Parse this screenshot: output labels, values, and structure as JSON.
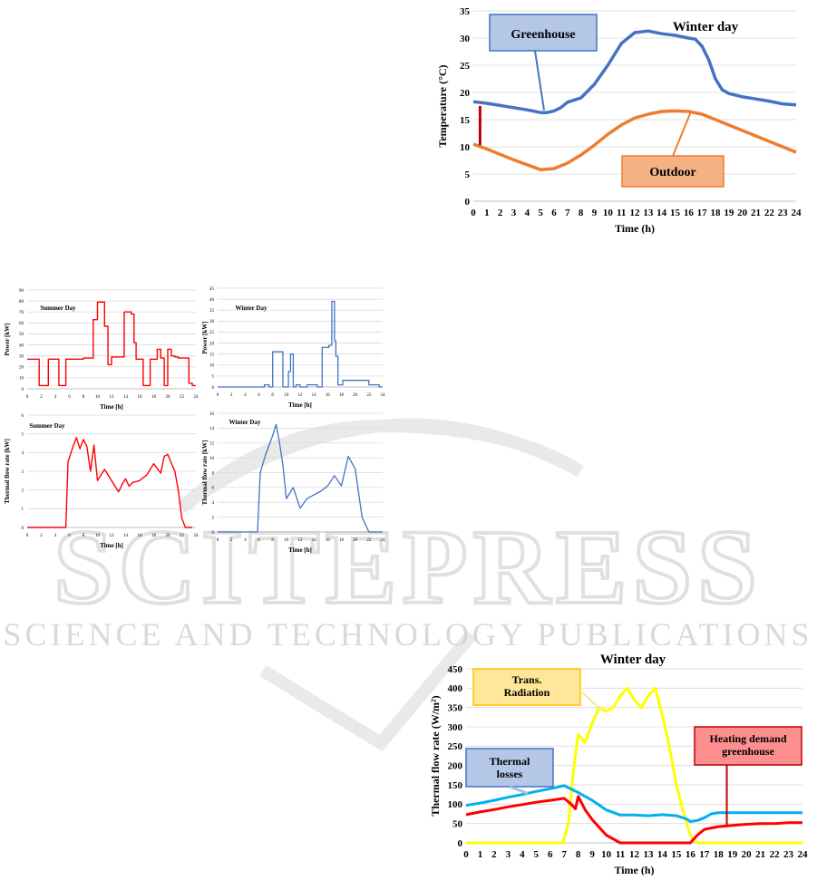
{
  "watermark": {
    "main": "SCITEPRESS",
    "sub": "SCIENCE AND TECHNOLOGY PUBLICATIONS"
  },
  "colors": {
    "red": "#ff0000",
    "blue": "#2f5fb3",
    "green_blue": "#4472c4",
    "orange": "#ed7d31",
    "yellow": "#ffff00",
    "cyan": "#00b0f0",
    "grid": "#d9d9d9"
  },
  "chart_data": [
    {
      "id": "greenhouse-winter",
      "type": "line",
      "title": "Winter day",
      "xlabel": "Time (h)",
      "ylabel": "Temperature (°C)",
      "xlim": [
        0,
        24
      ],
      "ylim": [
        0,
        35
      ],
      "xticks": [
        "0",
        "1",
        "2",
        "3",
        "4",
        "5",
        "6",
        "7",
        "8",
        "9",
        "10",
        "11",
        "12",
        "13",
        "14",
        "15",
        "16",
        "17",
        "18",
        "19",
        "20",
        "21",
        "22",
        "23",
        "24"
      ],
      "yticks": [
        "0",
        "5",
        "10",
        "15",
        "20",
        "25",
        "30",
        "35"
      ],
      "grid": true,
      "annotations": [
        "Greenhouse",
        "Outdoor"
      ],
      "series": [
        {
          "name": "Greenhouse",
          "color": "#4472c4",
          "x": [
            0,
            1,
            2,
            3,
            4,
            5,
            5.5,
            6,
            6.5,
            7,
            8,
            9,
            10,
            11,
            12,
            13,
            14,
            15,
            16,
            16.5,
            17,
            17.5,
            18,
            18.5,
            19,
            20,
            21,
            22,
            23,
            24
          ],
          "y": [
            18.3,
            18,
            17.6,
            17.2,
            16.8,
            16.3,
            16.3,
            16.6,
            17.2,
            18.2,
            19,
            21.5,
            25,
            29,
            31,
            31.3,
            30.8,
            30.5,
            30,
            29.8,
            28.5,
            26,
            22.5,
            20.5,
            19.8,
            19.2,
            18.8,
            18.4,
            17.9,
            17.7
          ]
        },
        {
          "name": "Outdoor",
          "color": "#ed7d31",
          "x": [
            0,
            1,
            2,
            3,
            4,
            5,
            6,
            7,
            8,
            9,
            10,
            11,
            12,
            13,
            14,
            15,
            16,
            17,
            18,
            19,
            20,
            21,
            22,
            23,
            24
          ],
          "y": [
            10.5,
            9.6,
            8.6,
            7.6,
            6.7,
            5.8,
            6,
            7,
            8.5,
            10.3,
            12.3,
            14,
            15.3,
            16,
            16.5,
            16.6,
            16.5,
            16,
            15,
            14,
            13,
            12,
            11,
            10,
            9
          ]
        }
      ]
    },
    {
      "id": "power-summer",
      "type": "line",
      "title": "Summer Day",
      "xlabel": "Time [h]",
      "ylabel": "Power [kW]",
      "xlim": [
        0,
        24
      ],
      "ylim": [
        0,
        90
      ],
      "xticks": [
        "0",
        "2",
        "4",
        "6",
        "8",
        "10",
        "12",
        "14",
        "16",
        "18",
        "20",
        "22",
        "24"
      ],
      "yticks": [
        "0",
        "10",
        "20",
        "30",
        "40",
        "50",
        "60",
        "70",
        "80",
        "90"
      ],
      "grid": true,
      "series": [
        {
          "name": "",
          "color": "#ff0000",
          "x": [
            0,
            1.7,
            1.7,
            3,
            3,
            4.5,
            4.5,
            5.5,
            5.5,
            8,
            8,
            9.4,
            9.4,
            10,
            10,
            11,
            11,
            11.5,
            11.5,
            12,
            12,
            13.8,
            13.8,
            14.8,
            14.8,
            15.2,
            15.2,
            15.5,
            15.5,
            16.5,
            16.5,
            17.5,
            17.5,
            18.5,
            18.5,
            19,
            19,
            19.5,
            19.5,
            20,
            20,
            20.5,
            20.5,
            21,
            21,
            21.5,
            21.5,
            23,
            23,
            23.5,
            23.5,
            24
          ],
          "y": [
            27,
            27,
            3,
            3,
            27,
            27,
            3,
            3,
            27,
            27,
            28,
            28,
            63,
            63,
            79,
            79,
            57,
            57,
            22,
            22,
            29,
            29,
            70,
            70,
            68,
            68,
            42,
            42,
            27,
            27,
            3,
            3,
            27,
            27,
            36,
            36,
            28,
            28,
            3,
            3,
            36,
            36,
            30,
            30,
            29,
            29,
            28,
            28,
            5,
            5,
            3,
            3
          ]
        }
      ]
    },
    {
      "id": "power-winter",
      "type": "line",
      "title": "Winter Day",
      "xlabel": "Time [h]",
      "ylabel": "Power [kW]",
      "xlim": [
        0,
        24
      ],
      "ylim": [
        0,
        45
      ],
      "xticks": [
        "0",
        "2",
        "4",
        "6",
        "8",
        "10",
        "12",
        "14",
        "16",
        "18",
        "20",
        "22",
        "24"
      ],
      "yticks": [
        "0",
        "5",
        "10",
        "15",
        "20",
        "25",
        "30",
        "35",
        "40",
        "45"
      ],
      "grid": true,
      "series": [
        {
          "name": "",
          "color": "#4472c4",
          "x": [
            0,
            6.8,
            6.8,
            7.5,
            7.5,
            8,
            8,
            9.5,
            9.5,
            10.3,
            10.3,
            10.6,
            10.6,
            11,
            11,
            11.4,
            11.4,
            12,
            12,
            13,
            13,
            14.5,
            14.5,
            15.2,
            15.2,
            16.2,
            16.2,
            16.6,
            16.6,
            17,
            17,
            17.2,
            17.2,
            17.5,
            17.5,
            18.2,
            18.2,
            19,
            19,
            20,
            20,
            22,
            22,
            23.5,
            23.5,
            24
          ],
          "y": [
            0,
            0,
            1,
            1,
            0,
            0,
            16,
            16,
            0,
            0,
            7,
            7,
            15,
            15,
            0,
            0,
            1,
            1,
            0,
            0,
            1,
            1,
            0,
            0,
            18,
            18,
            19,
            19,
            39,
            39,
            21,
            21,
            14,
            14,
            1,
            1,
            3,
            3,
            3,
            3,
            3,
            3,
            1,
            1,
            0,
            0
          ]
        }
      ]
    },
    {
      "id": "thermal-summer",
      "type": "line",
      "title": "Summer Day",
      "xlabel": "Time [h]",
      "ylabel": "Thermal flow rate [kW]",
      "xlim": [
        0,
        24
      ],
      "ylim": [
        0,
        6
      ],
      "xticks": [
        "0",
        "2",
        "4",
        "6",
        "8",
        "10",
        "12",
        "14",
        "16",
        "18",
        "20",
        "22",
        "24"
      ],
      "yticks": [
        "0",
        "1",
        "2",
        "3",
        "4",
        "5",
        "6"
      ],
      "grid": true,
      "series": [
        {
          "name": "",
          "color": "#ff0000",
          "x": [
            0,
            5.5,
            5.8,
            6.5,
            7,
            7.5,
            8,
            8.5,
            9,
            9.5,
            10,
            10.5,
            11,
            12,
            13,
            13.5,
            14,
            14.5,
            15,
            16,
            17,
            18,
            19,
            19.5,
            20,
            21,
            21.5,
            22,
            22.5,
            23.5
          ],
          "y": [
            0,
            0,
            3.5,
            4.3,
            4.8,
            4.2,
            4.7,
            4.3,
            3.0,
            4.4,
            2.5,
            2.8,
            3.1,
            2.5,
            1.9,
            2.3,
            2.6,
            2.2,
            2.4,
            2.5,
            2.8,
            3.4,
            2.9,
            3.8,
            3.9,
            3.0,
            2.0,
            0.5,
            0,
            0
          ]
        }
      ]
    },
    {
      "id": "thermal-winter",
      "type": "line",
      "title": "Winter Day",
      "xlabel": "Time [h]",
      "ylabel": "Thermal flow rate [kW]",
      "xlim": [
        0,
        24
      ],
      "ylim": [
        0,
        16
      ],
      "xticks": [
        "0",
        "2",
        "4",
        "6",
        "8",
        "10",
        "12",
        "14",
        "16",
        "18",
        "20",
        "22",
        "24"
      ],
      "yticks": [
        "0",
        "2",
        "4",
        "6",
        "8",
        "10",
        "12",
        "14",
        "16"
      ],
      "grid": true,
      "series": [
        {
          "name": "",
          "color": "#4472c4",
          "x": [
            0,
            5.8,
            6.2,
            7,
            8,
            8.5,
            9,
            9.5,
            10,
            11,
            12,
            13,
            14,
            15,
            16,
            17,
            18,
            19,
            20,
            21,
            22,
            23,
            24
          ],
          "y": [
            0,
            0,
            8,
            10.5,
            13,
            14.5,
            12,
            9,
            4.5,
            6,
            3.2,
            4.5,
            5,
            5.5,
            6.2,
            7.6,
            6.2,
            10.2,
            8.5,
            2,
            0,
            0,
            0
          ]
        }
      ]
    },
    {
      "id": "heating-winter",
      "type": "line",
      "title": "Winter day",
      "xlabel": "Time (h)",
      "ylabel": "Thermal flow rate (W/m²)",
      "xlim": [
        0,
        24
      ],
      "ylim": [
        0,
        450
      ],
      "xticks": [
        "0",
        "1",
        "2",
        "3",
        "4",
        "5",
        "6",
        "7",
        "8",
        "9",
        "10",
        "11",
        "12",
        "13",
        "14",
        "15",
        "16",
        "17",
        "18",
        "19",
        "20",
        "21",
        "22",
        "23",
        "24"
      ],
      "yticks": [
        "0",
        "50",
        "100",
        "150",
        "200",
        "250",
        "300",
        "350",
        "400",
        "450"
      ],
      "grid": true,
      "annotations": [
        "Trans. Radiation",
        "Thermal losses",
        "Heating demand greenhouse"
      ],
      "series": [
        {
          "name": "Trans. Radiation",
          "color": "#ffff00",
          "x": [
            0,
            6.9,
            7.3,
            7.7,
            8,
            8.5,
            9,
            9.5,
            10,
            10.5,
            11,
            11.5,
            12,
            12.5,
            13,
            13.5,
            14,
            14.5,
            15,
            15.5,
            16,
            16.5,
            17,
            24
          ],
          "y": [
            0,
            0,
            50,
            200,
            280,
            260,
            310,
            350,
            340,
            350,
            380,
            400,
            370,
            350,
            380,
            400,
            330,
            250,
            150,
            80,
            20,
            0,
            0,
            0
          ]
        },
        {
          "name": "Thermal losses",
          "color": "#00b0f0",
          "x": [
            0,
            1,
            2,
            3,
            4,
            5,
            6,
            7,
            8,
            9,
            10,
            11,
            12,
            13,
            14,
            15,
            15.7,
            16,
            16.5,
            17,
            17.5,
            18,
            19,
            20,
            21,
            22,
            23,
            24
          ],
          "y": [
            97,
            103,
            110,
            118,
            125,
            133,
            140,
            148,
            130,
            110,
            85,
            72,
            72,
            70,
            73,
            70,
            62,
            55,
            58,
            65,
            75,
            78,
            78,
            78,
            78,
            78,
            78,
            78
          ]
        },
        {
          "name": "Heating demand greenhouse",
          "color": "#ff0000",
          "x": [
            0,
            1,
            2,
            3,
            4,
            5,
            6,
            7,
            7.5,
            7.8,
            8,
            8.5,
            9,
            10,
            11,
            12,
            13,
            14,
            15,
            16,
            16.5,
            17,
            18,
            19,
            20,
            21,
            22,
            23,
            24
          ],
          "y": [
            73,
            80,
            86,
            93,
            99,
            105,
            110,
            115,
            100,
            88,
            120,
            85,
            60,
            20,
            0,
            0,
            0,
            0,
            0,
            0,
            20,
            35,
            42,
            45,
            48,
            50,
            50,
            52,
            52
          ]
        }
      ]
    }
  ]
}
